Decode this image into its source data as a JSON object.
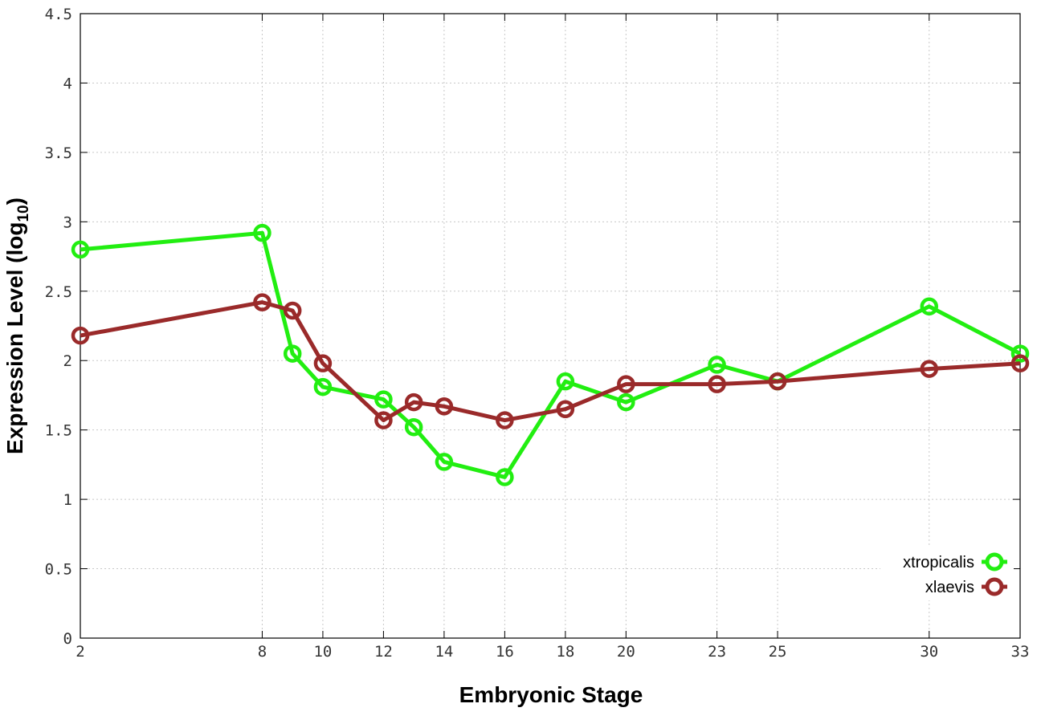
{
  "chart_data": {
    "type": "line",
    "xlabel": "Embryonic Stage",
    "ylabel_main": "Expression Level (log",
    "ylabel_sub": "10",
    "ylabel_close": ")",
    "x": [
      2,
      8,
      9,
      10,
      12,
      13,
      14,
      16,
      18,
      20,
      23,
      25,
      30,
      33
    ],
    "x_tick_labels": [
      "2",
      "8",
      "10",
      "12",
      "14",
      "16",
      "18",
      "20",
      "23",
      "25",
      "30",
      "33"
    ],
    "x_tick_values": [
      2,
      8,
      10,
      12,
      14,
      16,
      18,
      20,
      23,
      25,
      30,
      33
    ],
    "y_tick_labels": [
      "0",
      "0.5",
      "1",
      "1.5",
      "2",
      "2.5",
      "3",
      "3.5",
      "4",
      "4.5"
    ],
    "y_tick_values": [
      0,
      0.5,
      1,
      1.5,
      2,
      2.5,
      3,
      3.5,
      4,
      4.5
    ],
    "xlim": [
      2,
      33
    ],
    "ylim": [
      0,
      4.5
    ],
    "grid": true,
    "legend_position": "bottom-right",
    "series": [
      {
        "name": "xtropicalis",
        "color": "#22ee11",
        "values": [
          2.8,
          2.92,
          2.05,
          1.81,
          1.72,
          1.52,
          1.27,
          1.16,
          1.85,
          1.7,
          1.97,
          1.85,
          2.39,
          2.05
        ]
      },
      {
        "name": "xlaevis",
        "color": "#9a2a2a",
        "values": [
          2.18,
          2.42,
          2.36,
          1.98,
          1.57,
          1.7,
          1.67,
          1.57,
          1.65,
          1.83,
          1.83,
          1.85,
          1.94,
          1.98
        ]
      }
    ]
  }
}
